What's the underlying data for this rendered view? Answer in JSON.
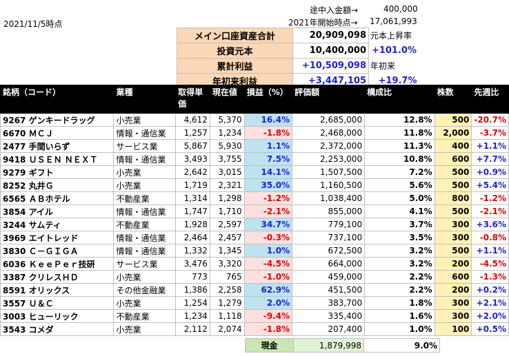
{
  "date": "2021/11/5時点",
  "deposit": {
    "label": "途中入金額→",
    "value": "400,000"
  },
  "year_start": {
    "label": "2021年開始時点→",
    "value": "17,061,993"
  },
  "summary": {
    "total_label": "メイン口座資産合計",
    "total_value": "20,909,098",
    "total_note": "元本上昇率",
    "principal_label": "投資元本",
    "principal_value": "10,400,000",
    "principal_pct": "+101.0%",
    "cum_label": "累計利益",
    "cum_value": "+10,509,098",
    "cum_note": "年初来",
    "ytd_label": "年初来利益",
    "ytd_value": "+3,447,105",
    "ytd_pct": "+19.7%"
  },
  "headers": {
    "name": "銘柄（コード）",
    "sector": "業種",
    "cost": "取得単価",
    "price": "現在値",
    "pl": "損益（%）",
    "value": "評価額",
    "ratio": "構成比",
    "shares": "株数",
    "week": "先週比"
  },
  "rows": [
    {
      "name": "9267 ゲンキードラッグ",
      "sector": "小売業",
      "cost": "4,612",
      "price": "5,370",
      "pl": "16.4%",
      "value": "2,685,000",
      "ratio": "12.8%",
      "shares": "500",
      "week": "-20.7%"
    },
    {
      "name": "6670 ＭＣＪ",
      "sector": "情報・通信業",
      "cost": "1,257",
      "price": "1,234",
      "pl": "-1.8%",
      "value": "2,468,000",
      "ratio": "11.8%",
      "shares": "2,000",
      "week": "-3.7%"
    },
    {
      "name": "2477 手間いらず",
      "sector": "サービス業",
      "cost": "5,867",
      "price": "5,930",
      "pl": "1.1%",
      "value": "2,372,000",
      "ratio": "11.3%",
      "shares": "400",
      "week": "+1.1%"
    },
    {
      "name": "9418 ＵＳＥＮ ＮＥＸＴ",
      "sector": "情報・通信業",
      "cost": "3,493",
      "price": "3,755",
      "pl": "7.5%",
      "value": "2,253,000",
      "ratio": "10.8%",
      "shares": "600",
      "week": "+7.7%"
    },
    {
      "name": "9279 ギフト",
      "sector": "小売業",
      "cost": "2,642",
      "price": "3,015",
      "pl": "14.1%",
      "value": "1,507,500",
      "ratio": "7.2%",
      "shares": "500",
      "week": "+0.9%"
    },
    {
      "name": "8252 丸井Ｇ",
      "sector": "小売業",
      "cost": "1,719",
      "price": "2,321",
      "pl": "35.0%",
      "value": "1,160,500",
      "ratio": "5.6%",
      "shares": "500",
      "week": "+5.4%"
    },
    {
      "name": "6565 ＡＢホテル",
      "sector": "不動産業",
      "cost": "1,314",
      "price": "1,298",
      "pl": "-1.2%",
      "value": "1,038,400",
      "ratio": "5.0%",
      "shares": "800",
      "week": "-1.2%"
    },
    {
      "name": "3854 アイル",
      "sector": "情報・通信業",
      "cost": "1,747",
      "price": "1,710",
      "pl": "-2.1%",
      "value": "855,000",
      "ratio": "4.1%",
      "shares": "500",
      "week": "-2.1%"
    },
    {
      "name": "3244 サムティ",
      "sector": "不動産業",
      "cost": "1,928",
      "price": "2,597",
      "pl": "34.7%",
      "value": "779,100",
      "ratio": "3.7%",
      "shares": "300",
      "week": "+3.6%"
    },
    {
      "name": "3969 エイトレッド",
      "sector": "情報・通信業",
      "cost": "2,464",
      "price": "2,457",
      "pl": "-0.3%",
      "value": "737,100",
      "ratio": "3.5%",
      "shares": "300",
      "week": "-0.8%"
    },
    {
      "name": "3830 Ｃ－ＧＩＧＡ",
      "sector": "情報・通信業",
      "cost": "1,332",
      "price": "1,345",
      "pl": "1.0%",
      "value": "672,500",
      "ratio": "3.2%",
      "shares": "500",
      "week": "+1.1%"
    },
    {
      "name": "6036 ＫｅｅＰｅｒ技研",
      "sector": "サービス業",
      "cost": "3,476",
      "price": "3,320",
      "pl": "-4.5%",
      "value": "664,000",
      "ratio": "3.2%",
      "shares": "200",
      "week": "-4.5%"
    },
    {
      "name": "3387 クリレスＨＤ",
      "sector": "小売業",
      "cost": "773",
      "price": "765",
      "pl": "-1.0%",
      "value": "459,000",
      "ratio": "2.2%",
      "shares": "600",
      "week": "-1.3%"
    },
    {
      "name": "8591 オリックス",
      "sector": "その他金融業",
      "cost": "1,386",
      "price": "2,258",
      "pl": "62.9%",
      "value": "451,500",
      "ratio": "2.2%",
      "shares": "200",
      "week": "+0.2%"
    },
    {
      "name": "3557 Ｕ＆Ｃ",
      "sector": "小売業",
      "cost": "1,254",
      "price": "1,279",
      "pl": "2.0%",
      "value": "383,700",
      "ratio": "1.8%",
      "shares": "300",
      "week": "+2.1%"
    },
    {
      "name": "3003 ヒューリック",
      "sector": "不動産業",
      "cost": "1,234",
      "price": "1,118",
      "pl": "-9.4%",
      "value": "335,400",
      "ratio": "1.6%",
      "shares": "300",
      "week": "+2.0%"
    },
    {
      "name": "3543 コメダ",
      "sector": "小売業",
      "cost": "2,112",
      "price": "2,074",
      "pl": "-1.8%",
      "value": "207,400",
      "ratio": "1.0%",
      "shares": "100",
      "week": "+0.5%"
    }
  ],
  "cash": {
    "label": "現金",
    "value": "1,879,998",
    "pct": "9.0%"
  }
}
